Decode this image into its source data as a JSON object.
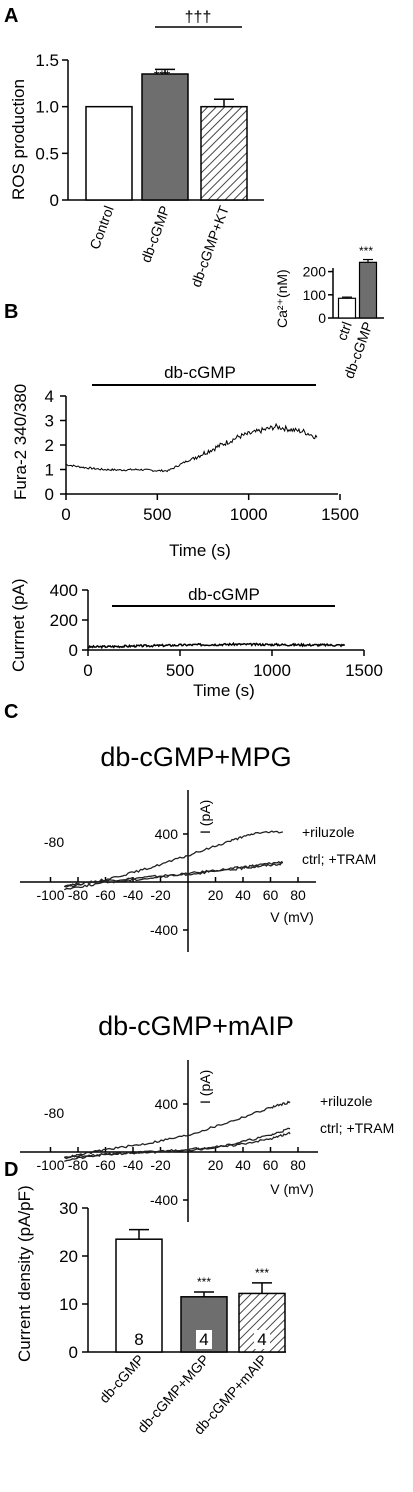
{
  "chart_data": [
    {
      "panel": "A",
      "type": "bar",
      "ylabel": "ROS production",
      "categories": [
        "Control",
        "db-cGMP",
        "db-cGMP+KT"
      ],
      "values": [
        1.0,
        1.35,
        1.0
      ],
      "errors": [
        0,
        0.05,
        0.08
      ],
      "fills": [
        "white",
        "gray",
        "hatched"
      ],
      "ylim": [
        0,
        1.5
      ],
      "yticks": [
        "0",
        "0.5",
        "1.0",
        "1.5"
      ],
      "annotations": [
        "***",
        "†††"
      ]
    },
    {
      "panel": "B",
      "type": "line",
      "ylabel": "Fura-2 340/380",
      "xlabel": "Time (s)",
      "bar_label": "db-cGMP",
      "xlim": [
        0,
        1500
      ],
      "ylim": [
        0,
        4
      ],
      "xticks": [
        "0",
        "500",
        "1000",
        "1500"
      ],
      "yticks": [
        "0",
        "1",
        "2",
        "3",
        "4"
      ],
      "x": [
        0,
        100,
        200,
        300,
        400,
        500,
        560,
        650,
        750,
        850,
        950,
        1050,
        1150,
        1250,
        1300,
        1380
      ],
      "y": [
        1.2,
        1.08,
        1.0,
        0.98,
        1.0,
        0.95,
        0.95,
        1.3,
        1.65,
        2.0,
        2.35,
        2.55,
        2.75,
        2.6,
        2.55,
        2.3
      ]
    },
    {
      "panel": "B-inset",
      "type": "bar",
      "ylabel": "Ca²⁺(nM)",
      "categories": [
        "ctrl",
        "db-cGMP"
      ],
      "values": [
        85,
        240
      ],
      "errors": [
        5,
        12
      ],
      "fills": [
        "white",
        "gray"
      ],
      "ylim": [
        0,
        250
      ],
      "yticks": [
        "0",
        "100",
        "200"
      ],
      "annotations": [
        "***"
      ]
    },
    {
      "panel": "B-current",
      "type": "line",
      "ylabel": "Currnet (pA)",
      "xlabel": "Time (s)",
      "bar_label": "db-cGMP",
      "xlim": [
        0,
        1500
      ],
      "ylim": [
        0,
        400
      ],
      "xticks": [
        "0",
        "500",
        "1000",
        "1500"
      ],
      "yticks": [
        "0",
        "200",
        "400"
      ],
      "x": [
        0,
        200,
        400,
        600,
        800,
        1000,
        1200,
        1400
      ],
      "y": [
        20,
        25,
        30,
        35,
        38,
        36,
        34,
        32
      ]
    },
    {
      "panel": "C",
      "type": "line",
      "title": "db-cGMP+MPG",
      "ylabel": "I (pA)",
      "xlabel": "V (mV)",
      "marker_label": "-80",
      "xticks": [
        "-100",
        "-80",
        "-60",
        "-40",
        "-20",
        "20",
        "40",
        "60",
        "80"
      ],
      "yticks": [
        "400",
        "-400"
      ],
      "series": [
        {
          "name": "+riluzole",
          "x": [
            -90,
            -60,
            -30,
            0,
            30,
            50,
            70
          ],
          "y": [
            -40,
            20,
            110,
            220,
            340,
            410,
            420
          ]
        },
        {
          "name": "ctrl; +TRAM",
          "x": [
            -90,
            -60,
            -30,
            0,
            30,
            50,
            70
          ],
          "y": [
            -30,
            10,
            40,
            70,
            110,
            140,
            170
          ]
        },
        {
          "name": "",
          "x": [
            -90,
            -60,
            -30,
            0,
            30,
            50,
            70
          ],
          "y": [
            -60,
            -5,
            30,
            65,
            100,
            130,
            155
          ]
        }
      ]
    },
    {
      "panel": "C2",
      "type": "line",
      "title": "db-cGMP+mAIP",
      "ylabel": "I (pA)",
      "xlabel": "V (mV)",
      "marker_label": "-80",
      "xticks": [
        "-100",
        "-80",
        "-60",
        "-40",
        "-20",
        "20",
        "40",
        "60",
        "80"
      ],
      "yticks": [
        "400",
        "-400"
      ],
      "series": [
        {
          "name": "+riluzole",
          "x": [
            -90,
            -60,
            -30,
            0,
            30,
            60,
            75
          ],
          "y": [
            -50,
            20,
            70,
            140,
            250,
            370,
            420
          ]
        },
        {
          "name": "ctrl; +TRAM",
          "x": [
            -90,
            -60,
            -30,
            0,
            30,
            60,
            75
          ],
          "y": [
            -70,
            -20,
            0,
            20,
            60,
            140,
            200
          ]
        },
        {
          "name": "",
          "x": [
            -90,
            -60,
            -30,
            0,
            30,
            60,
            75
          ],
          "y": [
            -40,
            -20,
            -5,
            15,
            50,
            110,
            160
          ]
        }
      ]
    },
    {
      "panel": "D",
      "type": "bar",
      "ylabel": "Current density (pA/pF)",
      "categories": [
        "db-cGMP",
        "db-cGMP+MGP",
        "db-cGMP+mAIP"
      ],
      "values": [
        23.5,
        11.5,
        12.2
      ],
      "errors": [
        2.0,
        1.0,
        2.2
      ],
      "n": [
        "8",
        "4",
        "4"
      ],
      "fills": [
        "white",
        "gray",
        "hatched"
      ],
      "ylim": [
        0,
        30
      ],
      "yticks": [
        "0",
        "10",
        "20",
        "30"
      ],
      "annotations": [
        "***",
        "***"
      ]
    }
  ],
  "panel_letters": [
    "A",
    "B",
    "C",
    "D"
  ]
}
